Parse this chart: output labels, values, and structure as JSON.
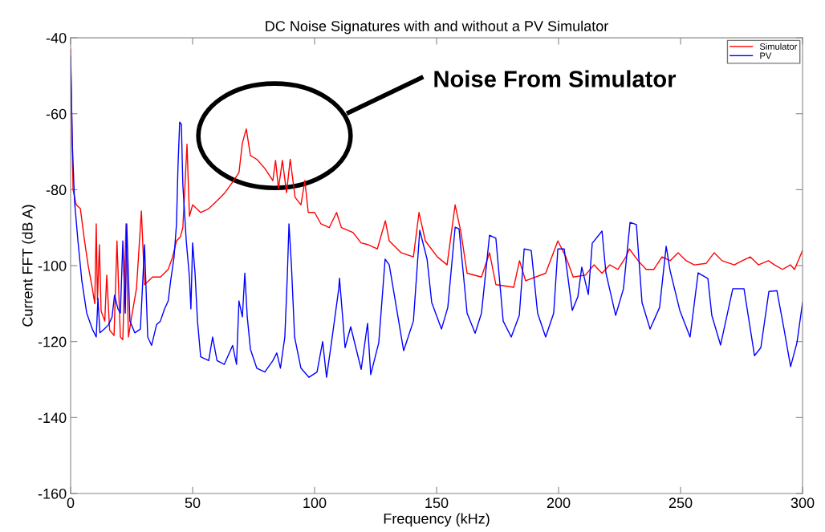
{
  "chart_data": {
    "type": "line",
    "title": "DC Noise Signatures with and without a PV Simulator",
    "xlabel": "Frequency (kHz)",
    "ylabel": "Current FFT (dB A)",
    "xlim": [
      0,
      300
    ],
    "ylim": [
      -160,
      -40
    ],
    "xticks": [
      0,
      50,
      100,
      150,
      200,
      250,
      300
    ],
    "yticks": [
      -160,
      -140,
      -120,
      -100,
      -80,
      -60,
      -40
    ],
    "grid": false,
    "legend": "top right",
    "marker": "none",
    "line_style": "solid",
    "annotations": [
      "Noise From Simulator"
    ],
    "series": [
      {
        "name": "Simulator",
        "color": "#ff0000",
        "x": [
          0,
          1,
          2.3,
          4,
          5.6,
          7.2,
          8.9,
          9.9,
          10.5,
          11,
          11.8,
          12.5,
          14,
          14.8,
          16,
          17.8,
          19,
          20.4,
          21.4,
          22.7,
          23.7,
          25,
          27,
          29,
          30.3,
          33.6,
          36.8,
          40,
          41.8,
          43.4,
          45,
          46,
          47.7,
          48.7,
          50,
          53.3,
          56.6,
          59.9,
          63,
          66.4,
          69,
          70.4,
          72,
          73.7,
          76.3,
          79.6,
          82.9,
          84,
          85.2,
          86.8,
          88.5,
          90,
          92,
          94.4,
          96,
          97.4,
          100,
          102.6,
          106,
          109,
          111,
          115.8,
          119,
          122,
          125.7,
          129,
          130.6,
          135.5,
          140.5,
          142.8,
          145.4,
          150.3,
          154.3,
          157.6,
          160,
          162.5,
          168.4,
          171.7,
          174.3,
          181.6,
          184,
          186.5,
          194.7,
          199.7,
          203,
          206,
          211,
          214.5,
          217.8,
          221,
          224.3,
          227.6,
          229,
          232.6,
          235.9,
          239,
          242.4,
          245.7,
          249,
          252.3,
          255.6,
          260.5,
          263.8,
          267,
          272,
          275.3,
          278.6,
          281.9,
          286,
          288.5,
          291.8,
          295,
          296.7,
          300
        ],
        "values": [
          -43,
          -80,
          -84,
          -85,
          -93,
          -100,
          -106,
          -110,
          -89,
          -109,
          -94.5,
          -112,
          -114.6,
          -102.5,
          -117,
          -118.4,
          -93.5,
          -118.8,
          -119.5,
          -89,
          -118.8,
          -113.5,
          -106,
          -85.6,
          -105,
          -103,
          -103,
          -101,
          -97.7,
          -93.5,
          -92.4,
          -90,
          -68,
          -87,
          -84,
          -86,
          -85,
          -83,
          -81,
          -78,
          -75.5,
          -67.7,
          -64,
          -71,
          -72,
          -74.4,
          -77.6,
          -72.3,
          -79.7,
          -72.3,
          -80.8,
          -72,
          -82,
          -84,
          -77.6,
          -86,
          -86,
          -89,
          -90,
          -86,
          -90,
          -91.3,
          -94,
          -94.5,
          -95.6,
          -88.2,
          -93.5,
          -96.6,
          -97.7,
          -86,
          -93.5,
          -97.7,
          -99.8,
          -84,
          -91.3,
          -102,
          -103,
          -96.6,
          -105,
          -105.7,
          -98.7,
          -104,
          -102,
          -93.5,
          -97.7,
          -103,
          -102.5,
          -99.8,
          -102,
          -99.8,
          -101,
          -97.7,
          -95.6,
          -98.7,
          -101,
          -101,
          -97.7,
          -98.7,
          -96.6,
          -98.7,
          -99.8,
          -99.4,
          -96.6,
          -98.7,
          -99.8,
          -98.7,
          -97.7,
          -99.8,
          -98.7,
          -99.8,
          -101,
          -99.8,
          -101,
          -96
        ]
      },
      {
        "name": "PV",
        "color": "#0000ff",
        "x": [
          0,
          0.7,
          1.6,
          3,
          4.6,
          6.6,
          8.9,
          10.5,
          11.2,
          12,
          13.8,
          15.5,
          17,
          18,
          19.4,
          20.4,
          21.4,
          22.4,
          23,
          24.3,
          26.3,
          28.6,
          30.3,
          31.6,
          33.2,
          35.2,
          36.8,
          38.5,
          40,
          41,
          42.4,
          43.4,
          44,
          44.7,
          45.4,
          46,
          47.4,
          48.7,
          49.3,
          50,
          51,
          52,
          53.3,
          56.6,
          58.2,
          60,
          63,
          66.4,
          68,
          69,
          70.4,
          71.4,
          72.4,
          73.7,
          76.3,
          79.6,
          82.9,
          84.5,
          86,
          87.8,
          88.8,
          89.5,
          90.5,
          91.8,
          94.4,
          97.7,
          101,
          103.3,
          104.9,
          106.9,
          109.9,
          110.2,
          112.5,
          114.8,
          119.1,
          121.7,
          123,
          126.3,
          128.9,
          130.6,
          136.5,
          140.5,
          143.1,
          146.1,
          148,
          152,
          154.6,
          157.6,
          159.2,
          162.5,
          165.8,
          168.4,
          171.7,
          174.3,
          177.3,
          180.6,
          183.9,
          185.9,
          188.8,
          191.4,
          194.7,
          198,
          199.7,
          202.3,
          205.6,
          207.9,
          209.5,
          212.2,
          213.8,
          217.8,
          219.4,
          223.4,
          226.6,
          229.3,
          231.9,
          234.2,
          237.5,
          241.4,
          244.1,
          245.7,
          249.7,
          253.9,
          257.2,
          261.2,
          262.8,
          266.4,
          271.4,
          276,
          280.3,
          282.9,
          286.2,
          289.5,
          292.4,
          295.1,
          297.7,
          300
        ],
        "values": [
          -45,
          -68,
          -83,
          -93.5,
          -104,
          -112.5,
          -116.7,
          -118.8,
          -108.6,
          -117.7,
          -116.7,
          -115.6,
          -113.5,
          -107.8,
          -111.4,
          -112.5,
          -93.5,
          -112.5,
          -89,
          -114.6,
          -117.7,
          -116.7,
          -94.5,
          -118.8,
          -121,
          -115.6,
          -114.6,
          -111.4,
          -109.3,
          -104,
          -97.7,
          -89,
          -74,
          -62.2,
          -62.8,
          -78.7,
          -93.5,
          -103,
          -111.4,
          -94,
          -102,
          -114.6,
          -124,
          -125,
          -118.8,
          -125,
          -126,
          -121,
          -126,
          -109.3,
          -113.5,
          -102,
          -113.5,
          -122,
          -127,
          -128,
          -125,
          -123,
          -127,
          -118.8,
          -103,
          -89,
          -99.8,
          -118.8,
          -127,
          -129.4,
          -128,
          -120,
          -129.4,
          -120.3,
          -106.1,
          -103.3,
          -121.6,
          -116.1,
          -127.3,
          -115.2,
          -128.7,
          -120.3,
          -98.3,
          -99.8,
          -122.4,
          -114.6,
          -90.7,
          -98.3,
          -109.7,
          -116.7,
          -111,
          -89.9,
          -90.3,
          -112.5,
          -117.8,
          -112.5,
          -92,
          -92.8,
          -114.6,
          -118.8,
          -113.1,
          -95.6,
          -96,
          -112.5,
          -118.8,
          -112.5,
          -95.6,
          -95.6,
          -111.8,
          -108.2,
          -100.4,
          -107.6,
          -94.1,
          -90.9,
          -101.9,
          -113.1,
          -106.1,
          -88.6,
          -89.2,
          -109.7,
          -116.7,
          -111,
          -94.9,
          -101.3,
          -111.8,
          -118.8,
          -101.9,
          -103.4,
          -113.1,
          -120.9,
          -106.1,
          -106.1,
          -123.7,
          -121.6,
          -106.8,
          -106.6,
          -116.7,
          -126.6,
          -120.3,
          -109.7
        ]
      }
    ]
  }
}
